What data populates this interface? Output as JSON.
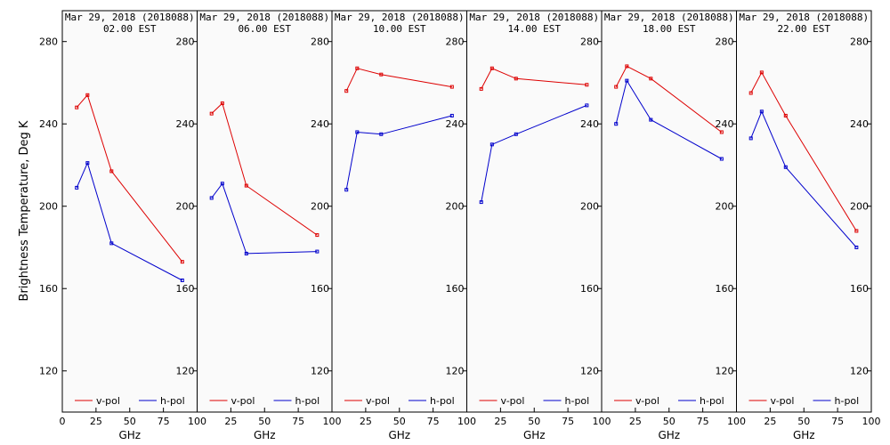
{
  "chart_data": {
    "type": "line",
    "ylabel": "Brightness Temperature, Deg K",
    "xlabel": "GHz",
    "xlim": [
      0,
      100
    ],
    "ylim": [
      100,
      295
    ],
    "yticks": [
      120,
      160,
      200,
      240,
      280
    ],
    "xtick_labels_first": [
      "0",
      "25",
      "50",
      "75"
    ],
    "xtick_labels_rest": [
      "100",
      "25",
      "50",
      "75"
    ],
    "xtick_label_last": "100",
    "colors": {
      "v-pol": "#dd0000",
      "h-pol": "#0000cc"
    },
    "legend": [
      "v-pol",
      "h-pol"
    ],
    "x": [
      10.7,
      18.7,
      36.5,
      89.0
    ],
    "panels": [
      {
        "title_line1": "Mar 29, 2018 (2018088)",
        "title_line2": "02.00 EST",
        "series": [
          {
            "name": "v-pol",
            "values": [
              248,
              254,
              217,
              173
            ]
          },
          {
            "name": "h-pol",
            "values": [
              209,
              221,
              182,
              164
            ]
          }
        ]
      },
      {
        "title_line1": "Mar 29, 2018 (2018088)",
        "title_line2": "06.00 EST",
        "series": [
          {
            "name": "v-pol",
            "values": [
              245,
              250,
              210,
              186
            ]
          },
          {
            "name": "h-pol",
            "values": [
              204,
              211,
              177,
              178
            ]
          }
        ]
      },
      {
        "title_line1": "Mar 29, 2018 (2018088)",
        "title_line2": "10.00 EST",
        "series": [
          {
            "name": "v-pol",
            "values": [
              256,
              267,
              264,
              258
            ]
          },
          {
            "name": "h-pol",
            "values": [
              208,
              236,
              235,
              244
            ]
          }
        ]
      },
      {
        "title_line1": "Mar 29, 2018 (2018088)",
        "title_line2": "14.00 EST",
        "series": [
          {
            "name": "v-pol",
            "values": [
              257,
              267,
              262,
              259
            ]
          },
          {
            "name": "h-pol",
            "values": [
              202,
              230,
              235,
              249
            ]
          }
        ]
      },
      {
        "title_line1": "Mar 29, 2018 (2018088)",
        "title_line2": "18.00 EST",
        "series": [
          {
            "name": "v-pol",
            "values": [
              258,
              268,
              262,
              236
            ]
          },
          {
            "name": "h-pol",
            "values": [
              240,
              261,
              242,
              223
            ]
          }
        ]
      },
      {
        "title_line1": "Mar 29, 2018 (2018088)",
        "title_line2": "22.00 EST",
        "series": [
          {
            "name": "v-pol",
            "values": [
              255,
              265,
              244,
              188
            ]
          },
          {
            "name": "h-pol",
            "values": [
              233,
              246,
              219,
              180
            ]
          }
        ]
      }
    ]
  }
}
